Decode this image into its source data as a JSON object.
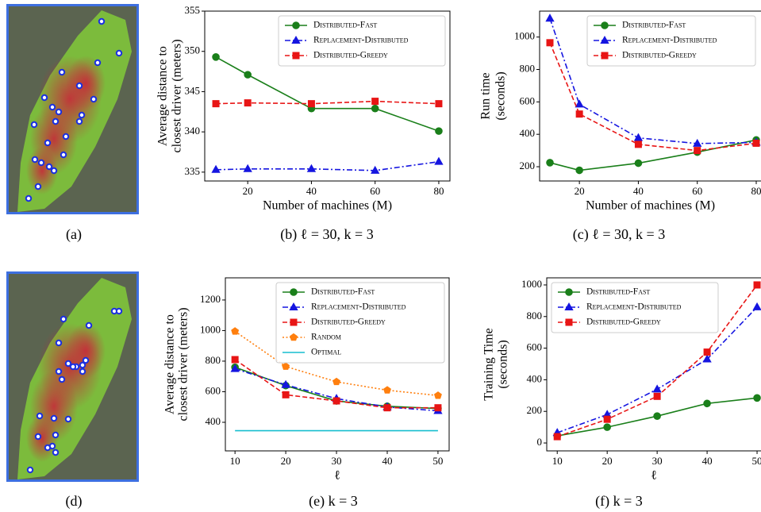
{
  "images": [
    {
      "caption": "(a)"
    },
    {
      "caption": "(d)"
    }
  ],
  "chart_data": [
    {
      "type": "line",
      "caption": "(b) ℓ = 30, k = 3",
      "xlabel": "Number of machines (M)",
      "ylabel": [
        "Average distance to",
        "closest driver (meters)"
      ],
      "x": [
        10,
        20,
        40,
        60,
        80
      ],
      "xlim": [
        6.5,
        83.5
      ],
      "xticks": [
        20,
        40,
        60,
        80
      ],
      "ylim": [
        333.9,
        355
      ],
      "yticks": [
        335,
        340,
        345,
        350,
        355
      ],
      "legend": "upper right",
      "series": [
        {
          "name": "Distributed-Fast",
          "color": "#1a7f1a",
          "style": "solid",
          "marker": "circle",
          "values": [
            349.3,
            347.1,
            342.9,
            342.9,
            340.1
          ]
        },
        {
          "name": "Replacement-Distributed",
          "color": "#1515e0",
          "style": "dashdot",
          "marker": "triangle",
          "values": [
            335.3,
            335.4,
            335.4,
            335.2,
            336.3
          ]
        },
        {
          "name": "Distributed-Greedy",
          "color": "#e81515",
          "style": "dashed",
          "marker": "square",
          "values": [
            343.5,
            343.6,
            343.5,
            343.8,
            343.5
          ]
        }
      ]
    },
    {
      "type": "line",
      "caption": "(c) ℓ = 30, k = 3",
      "xlabel": "Number of machines (M)",
      "ylabel": [
        "Run time",
        "(seconds)"
      ],
      "x": [
        10,
        20,
        40,
        60,
        80
      ],
      "xlim": [
        6.5,
        83.5
      ],
      "xticks": [
        20,
        40,
        60,
        80
      ],
      "ylim": [
        112,
        1160
      ],
      "yticks": [
        200,
        400,
        600,
        800,
        1000
      ],
      "legend": "upper right",
      "series": [
        {
          "name": "Distributed-Fast",
          "color": "#1a7f1a",
          "style": "solid",
          "marker": "circle",
          "values": [
            225,
            178,
            222,
            290,
            365
          ]
        },
        {
          "name": "Replacement-Distributed",
          "color": "#1515e0",
          "style": "dashdot",
          "marker": "triangle",
          "values": [
            1115,
            585,
            378,
            343,
            350
          ]
        },
        {
          "name": "Distributed-Greedy",
          "color": "#e81515",
          "style": "dashed",
          "marker": "square",
          "values": [
            965,
            525,
            338,
            300,
            345
          ]
        }
      ]
    },
    {
      "type": "line",
      "caption": "(e) k = 3",
      "xlabel": "ℓ",
      "ylabel": [
        "Average distance to",
        "closest driver (meters)"
      ],
      "x": [
        10,
        20,
        30,
        40,
        50
      ],
      "xlim": [
        8.1,
        52.2
      ],
      "xticks": [
        10,
        20,
        30,
        40,
        50
      ],
      "ylim": [
        213,
        1345
      ],
      "yticks": [
        400,
        600,
        800,
        1000,
        1200
      ],
      "legend": "upper right",
      "series": [
        {
          "name": "Distributed-Fast",
          "color": "#1a7f1a",
          "style": "solid",
          "marker": "circle",
          "values": [
            760,
            640,
            540,
            505,
            490
          ]
        },
        {
          "name": "Replacement-Distributed",
          "color": "#1515e0",
          "style": "dashdot",
          "marker": "triangle",
          "values": [
            750,
            645,
            555,
            500,
            475
          ]
        },
        {
          "name": "Distributed-Greedy",
          "color": "#e81515",
          "style": "dashed",
          "marker": "square",
          "values": [
            810,
            580,
            540,
            495,
            495
          ]
        },
        {
          "name": "Random",
          "color": "#ff7f0e",
          "style": "dotted",
          "marker": "pentagon",
          "values": [
            995,
            765,
            665,
            610,
            575
          ]
        },
        {
          "name": "Optimal",
          "color": "#17becf",
          "style": "solid",
          "values": [
            345,
            345,
            345,
            345,
            345
          ]
        }
      ]
    },
    {
      "type": "line",
      "caption": "(f) k = 3",
      "xlabel": "ℓ",
      "ylabel": [
        "Training Time",
        "(seconds)"
      ],
      "x": [
        10,
        20,
        30,
        40,
        50
      ],
      "xlim": [
        7.9,
        51.9
      ],
      "xticks": [
        10,
        20,
        30,
        40,
        50
      ],
      "ylim": [
        -50,
        1045
      ],
      "yticks": [
        0,
        200,
        400,
        600,
        800,
        1000
      ],
      "legend": "upper left",
      "series": [
        {
          "name": "Distributed-Fast",
          "color": "#1a7f1a",
          "style": "solid",
          "marker": "circle",
          "values": [
            45,
            100,
            170,
            250,
            285
          ]
        },
        {
          "name": "Replacement-Distributed",
          "color": "#1515e0",
          "style": "dashdot",
          "marker": "triangle",
          "values": [
            65,
            180,
            340,
            530,
            860
          ]
        },
        {
          "name": "Distributed-Greedy",
          "color": "#e81515",
          "style": "dashed",
          "marker": "square",
          "values": [
            40,
            150,
            295,
            575,
            1000
          ]
        }
      ]
    }
  ]
}
